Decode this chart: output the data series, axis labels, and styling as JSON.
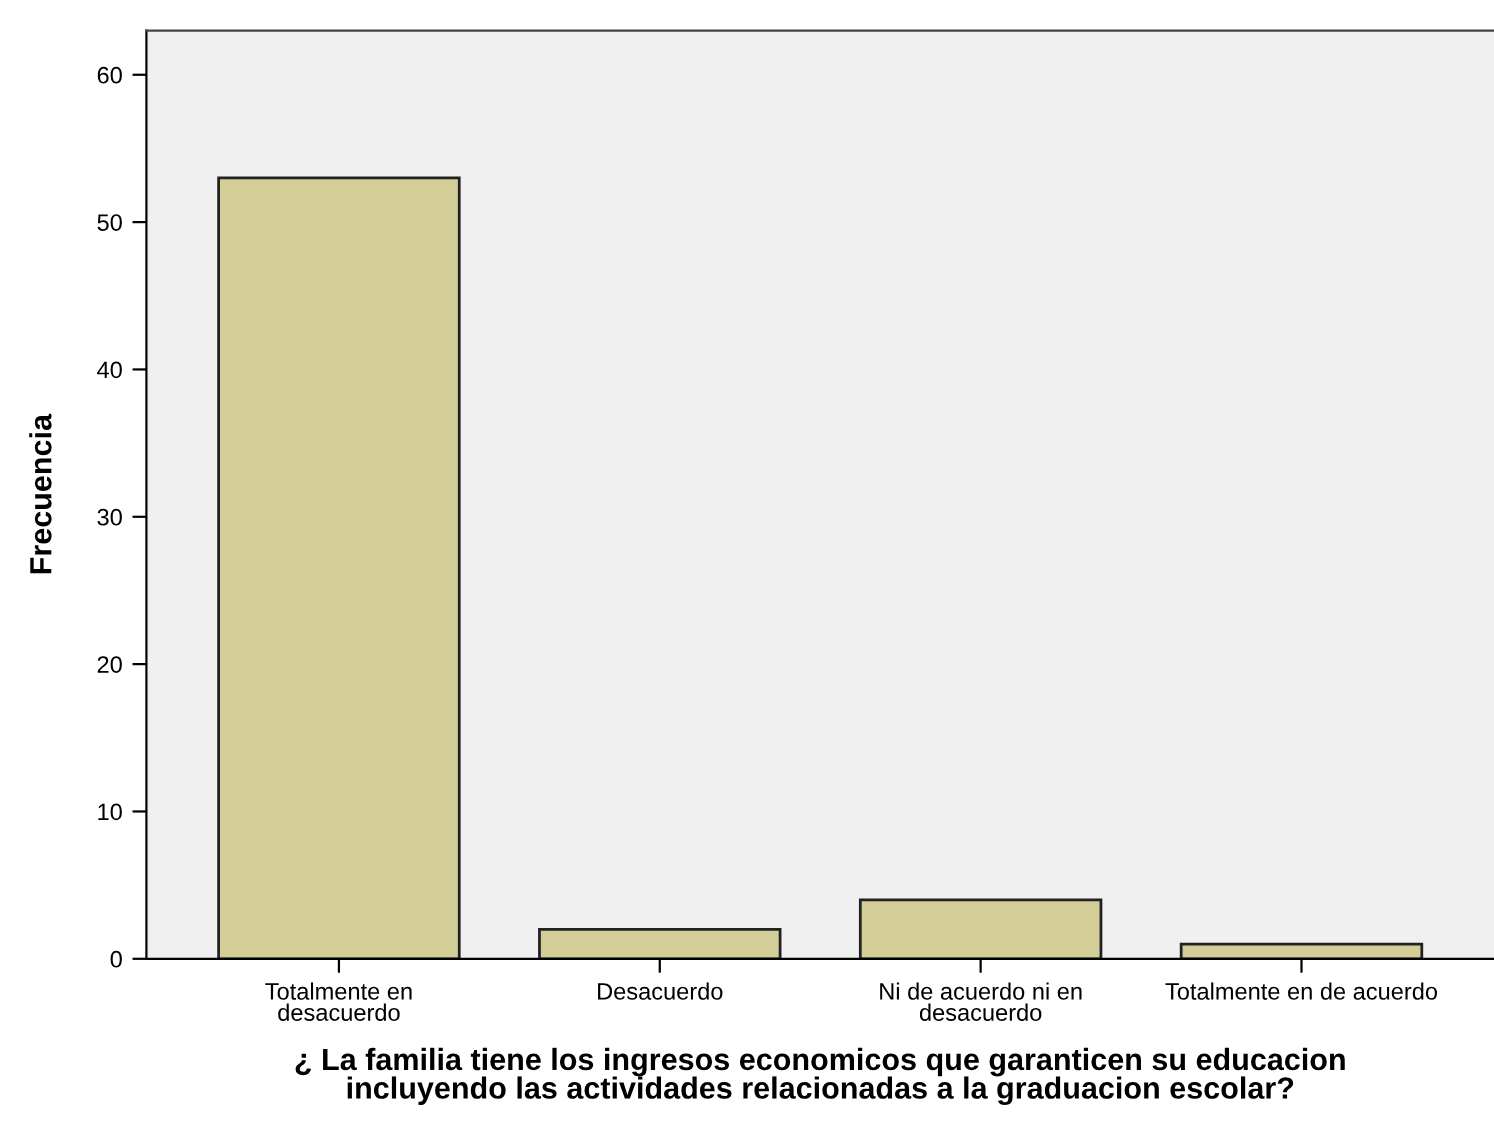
{
  "chart_data": {
    "type": "bar",
    "xlabel": "¿ La familia tiene los ingresos economicos que garanticen su educacion\nincluyendo las actividades relacionadas a la graduacion escolar?",
    "ylabel": "Frecuencia",
    "categories": [
      "Totalmente en\ndesacuerdo",
      "Desacuerdo",
      "Ni de acuerdo ni en\ndesacuerdo",
      "Totalmente en de acuerdo"
    ],
    "values": [
      53,
      2,
      4,
      1
    ],
    "color": "#d3ce98",
    "ylim": [
      0,
      63
    ],
    "yticks": [
      0,
      10,
      20,
      30,
      40,
      50,
      60
    ],
    "grid": false
  }
}
